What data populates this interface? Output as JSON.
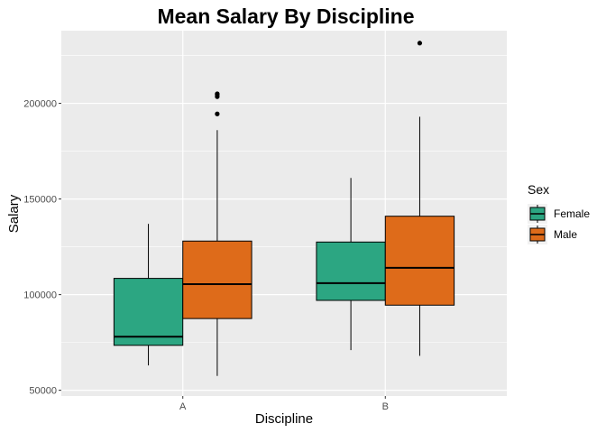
{
  "chart_data": {
    "type": "box",
    "title": "Mean Salary By Discipline",
    "xlabel": "Discipline",
    "ylabel": "Salary",
    "categories": [
      "A",
      "B"
    ],
    "ylim": [
      47000,
      238000
    ],
    "yticks": [
      50000,
      100000,
      150000,
      200000
    ],
    "ytick_labels": [
      "50000",
      "100000",
      "150000",
      "200000"
    ],
    "legend": {
      "title": "Sex",
      "position": "right",
      "entries": [
        {
          "name": "Female",
          "color": "#2ca682"
        },
        {
          "name": "Male",
          "color": "#de6b1a"
        }
      ]
    },
    "series": [
      {
        "name": "Female",
        "color": "#2ca682",
        "boxes": [
          {
            "category": "A",
            "whisker_low": 63000,
            "q1": 73500,
            "median": 78000,
            "q3": 108500,
            "whisker_high": 137000,
            "outliers": []
          },
          {
            "category": "B",
            "whisker_low": 71000,
            "q1": 97000,
            "median": 106000,
            "q3": 127500,
            "whisker_high": 161000,
            "outliers": []
          }
        ]
      },
      {
        "name": "Male",
        "color": "#de6b1a",
        "boxes": [
          {
            "category": "A",
            "whisker_low": 57500,
            "q1": 87500,
            "median": 105500,
            "q3": 128000,
            "whisker_high": 186000,
            "outliers": [
              194500,
              203500,
              204500,
              205000
            ]
          },
          {
            "category": "B",
            "whisker_low": 68000,
            "q1": 94500,
            "median": 114000,
            "q3": 141000,
            "whisker_high": 193000,
            "outliers": [
              231500
            ]
          }
        ]
      }
    ]
  }
}
